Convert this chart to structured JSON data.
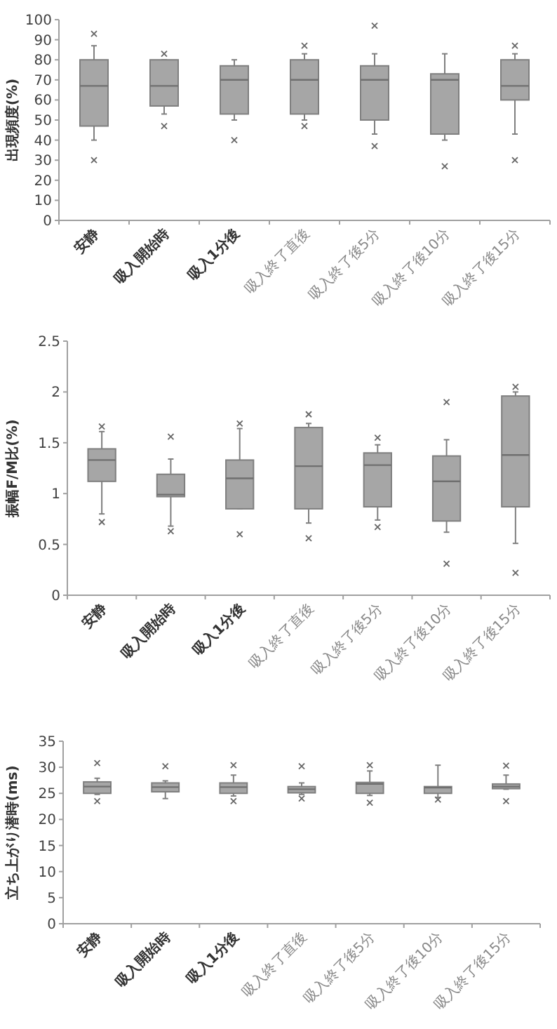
{
  "chart_data": [
    {
      "type": "box",
      "ylabel": "出現頻度(%)",
      "categories": [
        "安静",
        "吸入開始時",
        "吸入1分後",
        "吸入終了直後",
        "吸入終了後5分",
        "吸入終了後10分",
        "吸入終了後15分"
      ],
      "ylim": [
        0,
        100
      ],
      "yticks": [
        0,
        10,
        20,
        30,
        40,
        50,
        60,
        70,
        80,
        90,
        100
      ],
      "boxes": [
        {
          "low": 40,
          "q1": 47,
          "median": 67,
          "q3": 80,
          "high": 87,
          "outliers": [
            93,
            30
          ]
        },
        {
          "low": 53,
          "q1": 57,
          "median": 67,
          "q3": 80,
          "high": 80,
          "outliers": [
            83,
            47
          ]
        },
        {
          "low": 50,
          "q1": 53,
          "median": 70,
          "q3": 77,
          "high": 80,
          "outliers": [
            40
          ]
        },
        {
          "low": 50,
          "q1": 53,
          "median": 70,
          "q3": 80,
          "high": 83,
          "outliers": [
            87,
            47
          ]
        },
        {
          "low": 43,
          "q1": 50,
          "median": 70,
          "q3": 77,
          "high": 83,
          "outliers": [
            97,
            37
          ]
        },
        {
          "low": 40,
          "q1": 43,
          "median": 70,
          "q3": 73,
          "high": 83,
          "outliers": [
            27
          ]
        },
        {
          "low": 43,
          "q1": 60,
          "median": 67,
          "q3": 80,
          "high": 83,
          "outliers": [
            87,
            30
          ]
        }
      ]
    },
    {
      "type": "box",
      "ylabel": "振幅F/M比(%)",
      "categories": [
        "安静",
        "吸入開始時",
        "吸入1分後",
        "吸入終了直後",
        "吸入終了後5分",
        "吸入終了後10分",
        "吸入終了後15分"
      ],
      "ylim": [
        0,
        2.5
      ],
      "yticks": [
        0,
        0.5,
        1,
        1.5,
        2,
        2.5
      ],
      "boxes": [
        {
          "low": 0.8,
          "q1": 1.12,
          "median": 1.33,
          "q3": 1.44,
          "high": 1.61,
          "outliers": [
            1.66,
            0.72
          ]
        },
        {
          "low": 0.68,
          "q1": 0.97,
          "median": 0.99,
          "q3": 1.19,
          "high": 1.34,
          "outliers": [
            1.56,
            0.63
          ]
        },
        {
          "low": 0.85,
          "q1": 0.85,
          "median": 1.15,
          "q3": 1.33,
          "high": 1.64,
          "outliers": [
            1.69,
            0.6
          ]
        },
        {
          "low": 0.71,
          "q1": 0.85,
          "median": 1.27,
          "q3": 1.65,
          "high": 1.69,
          "outliers": [
            1.78,
            0.56
          ]
        },
        {
          "low": 0.74,
          "q1": 0.87,
          "median": 1.28,
          "q3": 1.4,
          "high": 1.48,
          "outliers": [
            1.55,
            0.67
          ]
        },
        {
          "low": 0.62,
          "q1": 0.73,
          "median": 1.12,
          "q3": 1.37,
          "high": 1.53,
          "outliers": [
            1.9,
            0.31
          ]
        },
        {
          "low": 0.51,
          "q1": 0.87,
          "median": 1.38,
          "q3": 1.96,
          "high": 2.0,
          "outliers": [
            2.05,
            0.22
          ]
        }
      ]
    },
    {
      "type": "box",
      "ylabel": "立ち上がり潜時(ms)",
      "categories": [
        "安静",
        "吸入開始時",
        "吸入1分後",
        "吸入終了直後",
        "吸入終了後5分",
        "吸入終了後10分",
        "吸入終了後15分"
      ],
      "ylim": [
        0,
        35
      ],
      "yticks": [
        0,
        5,
        10,
        15,
        20,
        25,
        30,
        35
      ],
      "boxes": [
        {
          "low": 24.8,
          "q1": 25,
          "median": 26.3,
          "q3": 27.2,
          "high": 27.9,
          "outliers": [
            30.8,
            23.5
          ]
        },
        {
          "low": 24,
          "q1": 25.3,
          "median": 26.2,
          "q3": 27,
          "high": 27.4,
          "outliers": [
            30.2
          ]
        },
        {
          "low": 24.5,
          "q1": 25,
          "median": 26.2,
          "q3": 27,
          "high": 28.5,
          "outliers": [
            30.4,
            23.5
          ]
        },
        {
          "low": 24.8,
          "q1": 25.1,
          "median": 25.8,
          "q3": 26.3,
          "high": 27,
          "outliers": [
            30.2,
            24
          ]
        },
        {
          "low": 24.6,
          "q1": 25,
          "median": 26.8,
          "q3": 27.1,
          "high": 29.3,
          "outliers": [
            30.4,
            23.2
          ]
        },
        {
          "low": 24.2,
          "q1": 25,
          "median": 26.1,
          "q3": 26.3,
          "high": 30.4,
          "outliers": [
            23.8
          ]
        },
        {
          "low": 25.8,
          "q1": 25.9,
          "median": 26.3,
          "q3": 26.8,
          "high": 28.5,
          "outliers": [
            30.3,
            23.5
          ]
        }
      ]
    }
  ]
}
